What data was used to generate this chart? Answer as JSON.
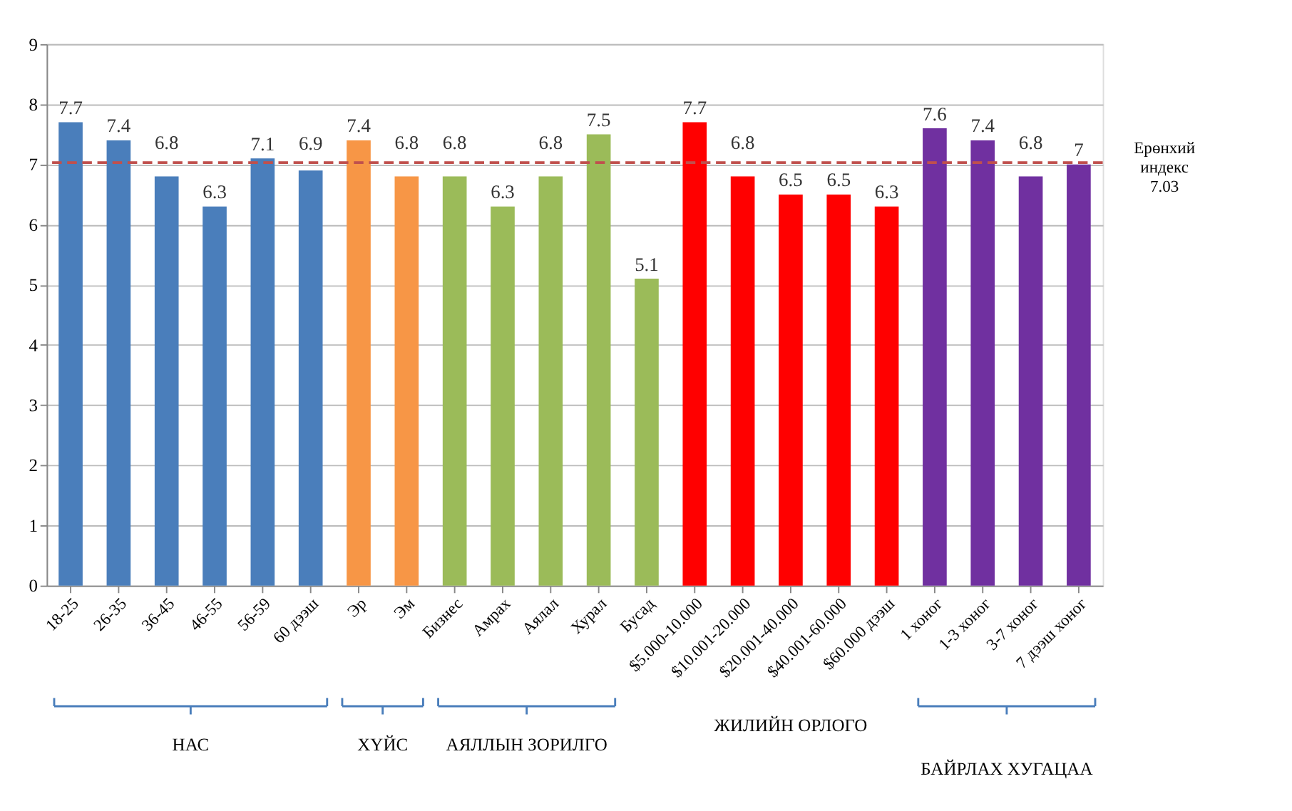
{
  "chart_data": {
    "type": "bar",
    "categories": [
      "18-25",
      "26-35",
      "36-45",
      "46-55",
      "56-59",
      "60 дээш",
      "Эр",
      "Эм",
      "Бизнес",
      "Амрах",
      "Аялал",
      "Хурал",
      "Бусад",
      "$5.000-10.000",
      "$10.001-20.000",
      "$20.001-40.000",
      "$40.001-60.000",
      "$60.000 дээш",
      "1 хоног",
      "1-3 хоног",
      "3-7 хоног",
      "7 дээш хоног"
    ],
    "values": [
      7.7,
      7.4,
      6.8,
      6.3,
      7.1,
      6.9,
      7.4,
      6.8,
      6.8,
      6.3,
      6.8,
      7.5,
      5.1,
      7.7,
      6.8,
      6.5,
      6.5,
      6.3,
      7.6,
      7.4,
      6.8,
      7
    ],
    "colors": [
      "#4a7ebb",
      "#4a7ebb",
      "#4a7ebb",
      "#4a7ebb",
      "#4a7ebb",
      "#4a7ebb",
      "#f79646",
      "#f79646",
      "#9bbb59",
      "#9bbb59",
      "#9bbb59",
      "#9bbb59",
      "#9bbb59",
      "#ff0000",
      "#ff0000",
      "#ff0000",
      "#ff0000",
      "#ff0000",
      "#7030a0",
      "#7030a0",
      "#7030a0",
      "#7030a0"
    ],
    "ylim": [
      0,
      9
    ],
    "yticks": [
      0,
      1,
      2,
      3,
      4,
      5,
      6,
      7,
      8,
      9
    ],
    "grid": "y",
    "data_labels": true,
    "ref_lines": [
      {
        "axis": "y",
        "value": 7.03,
        "label": "Ерөнхий индекс 7.03",
        "color": "#c0504d",
        "line_style": "dashed"
      }
    ],
    "annotations": [
      "НАС",
      "ХҮЙС",
      "АЯЛЛЫН ЗОРИЛГО",
      "ЖИЛИЙН ОРЛОГО",
      "БАЙРЛАХ ХУГАЦАА"
    ]
  }
}
